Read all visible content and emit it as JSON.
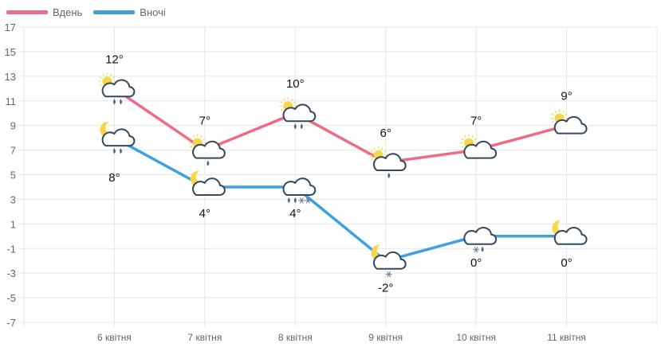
{
  "chart_data": {
    "type": "line",
    "categories": [
      "6 квітня",
      "7 квітня",
      "8 квітня",
      "9 квітня",
      "10 квітня",
      "11 квітня"
    ],
    "ylim": [
      -7,
      17
    ],
    "yticks": [
      17,
      15,
      13,
      11,
      9,
      7,
      5,
      3,
      1,
      -1,
      -3,
      -5,
      -7
    ],
    "grid": true,
    "legend": "top-left",
    "series": [
      {
        "name": "Вдень",
        "color": "#f06a86",
        "values": [
          12,
          7,
          10,
          6,
          7,
          9
        ],
        "labels": [
          "12°",
          "7°",
          "10°",
          "6°",
          "7°",
          "9°"
        ],
        "icons": [
          "sun-cloud-rain",
          "sun-cloud-drop",
          "sun-cloud-rain",
          "sun-cloud-drop",
          "sun-cloud",
          "sun-cloud"
        ]
      },
      {
        "name": "Вночі",
        "color": "#3da1e0",
        "values": [
          8,
          4,
          4,
          -2,
          0,
          0
        ],
        "labels": [
          "8°",
          "4°",
          "4°",
          "-2°",
          "0°",
          "0°"
        ],
        "icons": [
          "moon-cloud-rain",
          "moon-cloud",
          "cloud-rain-snow",
          "moon-cloud-snow",
          "cloud-snow-drop",
          "moon-cloud"
        ]
      }
    ]
  }
}
